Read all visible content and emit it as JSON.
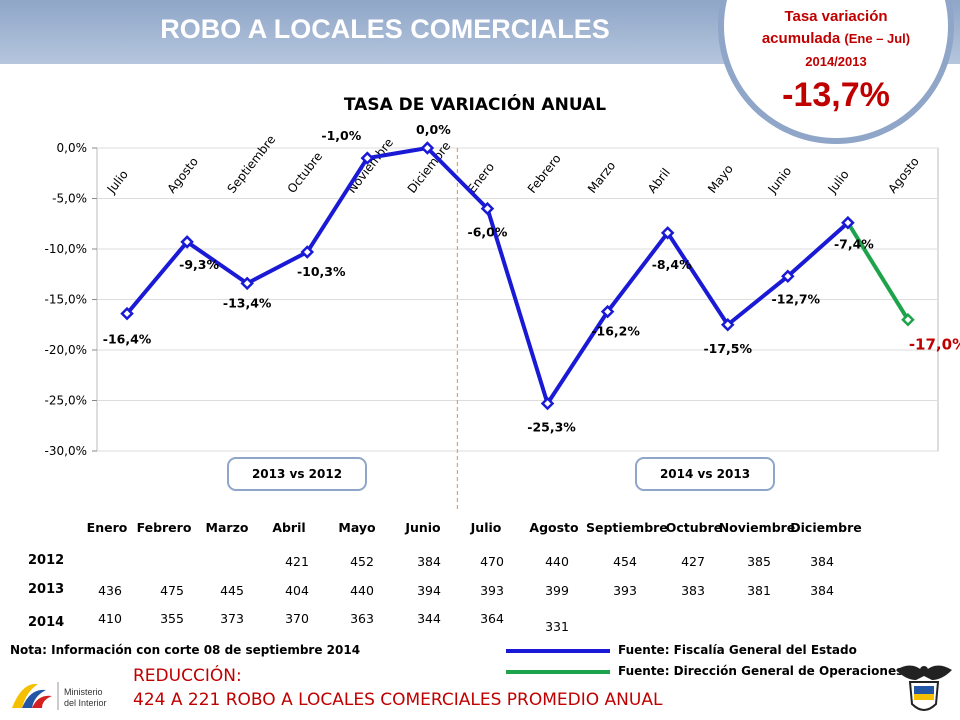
{
  "header": {
    "title": "ROBO A LOCALES COMERCIALES"
  },
  "badge": {
    "line1": "Tasa variación",
    "line2": "acumulada",
    "line2b": "(Ene – Jul)",
    "line3": "2014/2013",
    "value": "-13,7%"
  },
  "chart_data": {
    "type": "line",
    "title": "TASA DE VARIACIÓN ANUAL",
    "categories": [
      "Julio",
      "Agosto",
      "Septiembre",
      "Octubre",
      "Noviembre",
      "Diciembre",
      "Enero",
      "Febrero",
      "Marzo",
      "Abril",
      "Mayo",
      "Junio",
      "Julio",
      "Agosto"
    ],
    "series": [
      {
        "values": [
          -16.4,
          -9.3,
          -13.4,
          -10.3,
          -1.0,
          0.0,
          -6.0,
          -25.3,
          -16.2,
          -8.4,
          -17.5,
          -12.7,
          -7.4,
          null
        ],
        "color": "#1a1ad6"
      },
      {
        "values": [
          null,
          null,
          null,
          null,
          null,
          null,
          null,
          null,
          null,
          null,
          null,
          null,
          -7.4,
          -17.0
        ],
        "color": "#1da34a"
      }
    ],
    "data_labels": [
      "-16,4%",
      "-9,3%",
      "-13,4%",
      "-10,3%",
      "-1,0%",
      "0,0%",
      "-6,0%",
      "-25,3%",
      "-16,2%",
      "-8,4%",
      "-17,5%",
      "-12,7%",
      "-7,4%",
      "-17,0%"
    ],
    "yticks": [
      "0,0%",
      "-5,0%",
      "-10,0%",
      "-15,0%",
      "-20,0%",
      "-25,0%",
      "-30,0%"
    ],
    "ylim": [
      -30,
      0
    ],
    "period_labels": [
      "2013 vs 2012",
      "2014 vs 2013"
    ]
  },
  "table": {
    "columns": [
      "Enero",
      "Febrero",
      "Marzo",
      "Abril",
      "Mayo",
      "Junio",
      "Julio",
      "Agosto",
      "Septiembre",
      "Octubre",
      "Noviembre",
      "Diciembre"
    ],
    "rows": [
      {
        "year": "2012",
        "values": [
          "",
          "",
          "",
          "421",
          "452",
          "384",
          "470",
          "440",
          "454",
          "427",
          "385",
          "384"
        ]
      },
      {
        "year": "2013",
        "values": [
          "436",
          "475",
          "445",
          "404",
          "440",
          "394",
          "393",
          "399",
          "393",
          "383",
          "381",
          "384"
        ]
      },
      {
        "year": "2014",
        "values": [
          "410",
          "355",
          "373",
          "370",
          "363",
          "344",
          "364",
          "331",
          "",
          "",
          "",
          ""
        ]
      }
    ]
  },
  "footer": {
    "note": "Nota: Información con corte 08 de septiembre 2014",
    "source1": "Fuente: Fiscalía General del Estado",
    "source2": "Fuente: Dirección General de Operaciones",
    "reduction_label": "REDUCCIÓN:",
    "reduction_text": "424 A 221 ROBO A LOCALES COMERCIALES PROMEDIO ANUAL",
    "logo_line1": "Ministerio",
    "logo_line2": "del Interior"
  },
  "colors": {
    "blue": "#1a1ad6",
    "green": "#1da34a",
    "red": "#c00000",
    "banner": "#8fa6c8"
  }
}
